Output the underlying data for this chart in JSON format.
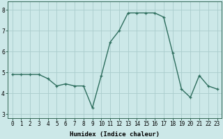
{
  "x": [
    0,
    1,
    2,
    3,
    4,
    5,
    6,
    7,
    8,
    9,
    10,
    11,
    12,
    13,
    14,
    15,
    16,
    17,
    18,
    19,
    20,
    21,
    22,
    23
  ],
  "y": [
    4.9,
    4.9,
    4.9,
    4.9,
    4.7,
    4.35,
    4.45,
    4.35,
    4.35,
    3.3,
    4.85,
    6.45,
    7.0,
    7.85,
    7.85,
    7.85,
    7.85,
    7.65,
    5.95,
    4.2,
    3.8,
    4.85,
    4.35,
    4.2
  ],
  "line_color": "#2e6e5e",
  "marker": "+",
  "bg_color": "#cce8e8",
  "grid_color": "#aacccc",
  "xlabel": "Humidex (Indice chaleur)",
  "ylim": [
    2.8,
    8.4
  ],
  "xlim": [
    -0.5,
    23.5
  ],
  "yticks": [
    3,
    4,
    5,
    6,
    7,
    8
  ],
  "xticks": [
    0,
    1,
    2,
    3,
    4,
    5,
    6,
    7,
    8,
    9,
    10,
    11,
    12,
    13,
    14,
    15,
    16,
    17,
    18,
    19,
    20,
    21,
    22,
    23
  ],
  "xtick_labels": [
    "0",
    "1",
    "2",
    "3",
    "4",
    "5",
    "6",
    "7",
    "8",
    "9",
    "10",
    "11",
    "12",
    "13",
    "14",
    "15",
    "16",
    "17",
    "18",
    "19",
    "20",
    "21",
    "22",
    "23"
  ],
  "label_fontsize": 6.5,
  "tick_fontsize": 5.5,
  "line_width": 1.0,
  "marker_size": 3,
  "spine_color": "#336655"
}
